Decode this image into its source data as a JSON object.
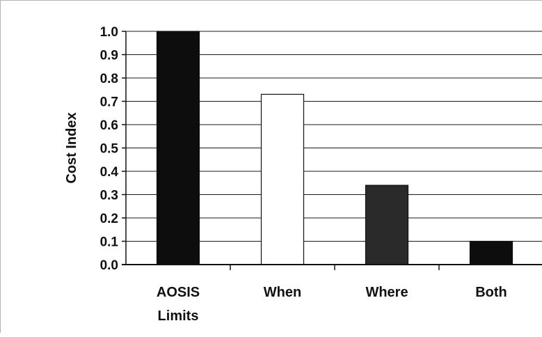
{
  "chart_data": {
    "type": "bar",
    "categories": [
      "AOSIS Limits",
      "When",
      "Where",
      "Both"
    ],
    "category_lines": [
      [
        "AOSIS",
        "Limits"
      ],
      [
        "When"
      ],
      [
        "Where"
      ],
      [
        "Both"
      ]
    ],
    "values": [
      1.0,
      0.73,
      0.34,
      0.1
    ],
    "bar_colors": [
      "#0d0d0d",
      "#ffffff",
      "#2a2a2a",
      "#0d0d0d"
    ],
    "title": "",
    "xlabel": "",
    "ylabel": "Cost Index",
    "ylim": [
      0,
      1.0
    ],
    "yticks": [
      0.0,
      0.1,
      0.2,
      0.3,
      0.4,
      0.5,
      0.6,
      0.7,
      0.8,
      0.9,
      1.0
    ],
    "ytick_labels": [
      "0.0",
      "0.1",
      "0.2",
      "0.3",
      "0.4",
      "0.5",
      "0.6",
      "0.7",
      "0.8",
      "0.9",
      "1.0"
    ],
    "grid": true,
    "legend": "none"
  }
}
